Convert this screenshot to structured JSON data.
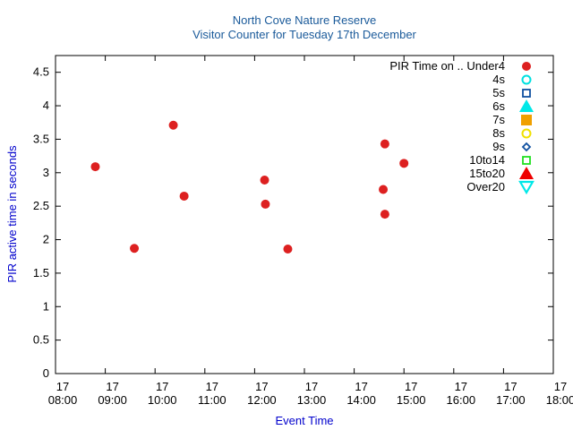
{
  "chart_data": {
    "type": "scatter",
    "title": "North Cove Nature Reserve",
    "subtitle": "Visitor Counter for Tuesday 17th December",
    "xlabel": "Event Time",
    "ylabel": "PIR active time in seconds",
    "xlim": [
      "17 08:00",
      "17 18:00"
    ],
    "ylim": [
      0,
      4.75
    ],
    "x_ticks": [
      "17 08:00",
      "17 09:00",
      "17 10:00",
      "17 11:00",
      "17 12:00",
      "17 13:00",
      "17 14:00",
      "17 15:00",
      "17 16:00",
      "17 17:00",
      "17 18:00"
    ],
    "y_ticks": [
      0,
      0.5,
      1,
      1.5,
      2,
      2.5,
      3,
      3.5,
      4,
      4.5
    ],
    "grid": false,
    "legend_position": "top-right",
    "legend_title": "PIR Time on ..",
    "colors": {
      "title": "#1a5a9a",
      "axis_label": "#0000cc",
      "axis": "#000000",
      "under4": "#dd2020",
      "4s": "#00e0e0",
      "5s": "#1050a0",
      "6s": "#00e8e8",
      "7s": "#f0a000",
      "8s": "#f0e000",
      "9s": "#1050a0",
      "10to14": "#20e020",
      "15to20": "#ee0000",
      "over20": "#00e8e8"
    },
    "series": [
      {
        "name": "Under4",
        "marker": "filled-circle",
        "points": [
          {
            "x": "17 08:48",
            "y": 3.09
          },
          {
            "x": "17 09:35",
            "y": 1.87
          },
          {
            "x": "17 10:22",
            "y": 3.71
          },
          {
            "x": "17 10:35",
            "y": 2.65
          },
          {
            "x": "17 12:12",
            "y": 2.89
          },
          {
            "x": "17 12:13",
            "y": 2.53
          },
          {
            "x": "17 12:40",
            "y": 1.86
          },
          {
            "x": "17 14:35",
            "y": 2.75
          },
          {
            "x": "17 14:37",
            "y": 3.43
          },
          {
            "x": "17 14:37",
            "y": 2.38
          },
          {
            "x": "17 15:00",
            "y": 3.14
          }
        ]
      },
      {
        "name": "4s",
        "marker": "open-circle",
        "points": []
      },
      {
        "name": "5s",
        "marker": "open-square",
        "points": []
      },
      {
        "name": "6s",
        "marker": "filled-triangle-up",
        "points": []
      },
      {
        "name": "7s",
        "marker": "filled-square",
        "points": []
      },
      {
        "name": "8s",
        "marker": "open-circle",
        "points": []
      },
      {
        "name": "9s",
        "marker": "open-diamond",
        "points": []
      },
      {
        "name": "10to14",
        "marker": "open-square",
        "points": []
      },
      {
        "name": "15to20",
        "marker": "filled-triangle-up",
        "points": []
      },
      {
        "name": "Over20",
        "marker": "open-triangle-down",
        "points": []
      }
    ]
  }
}
